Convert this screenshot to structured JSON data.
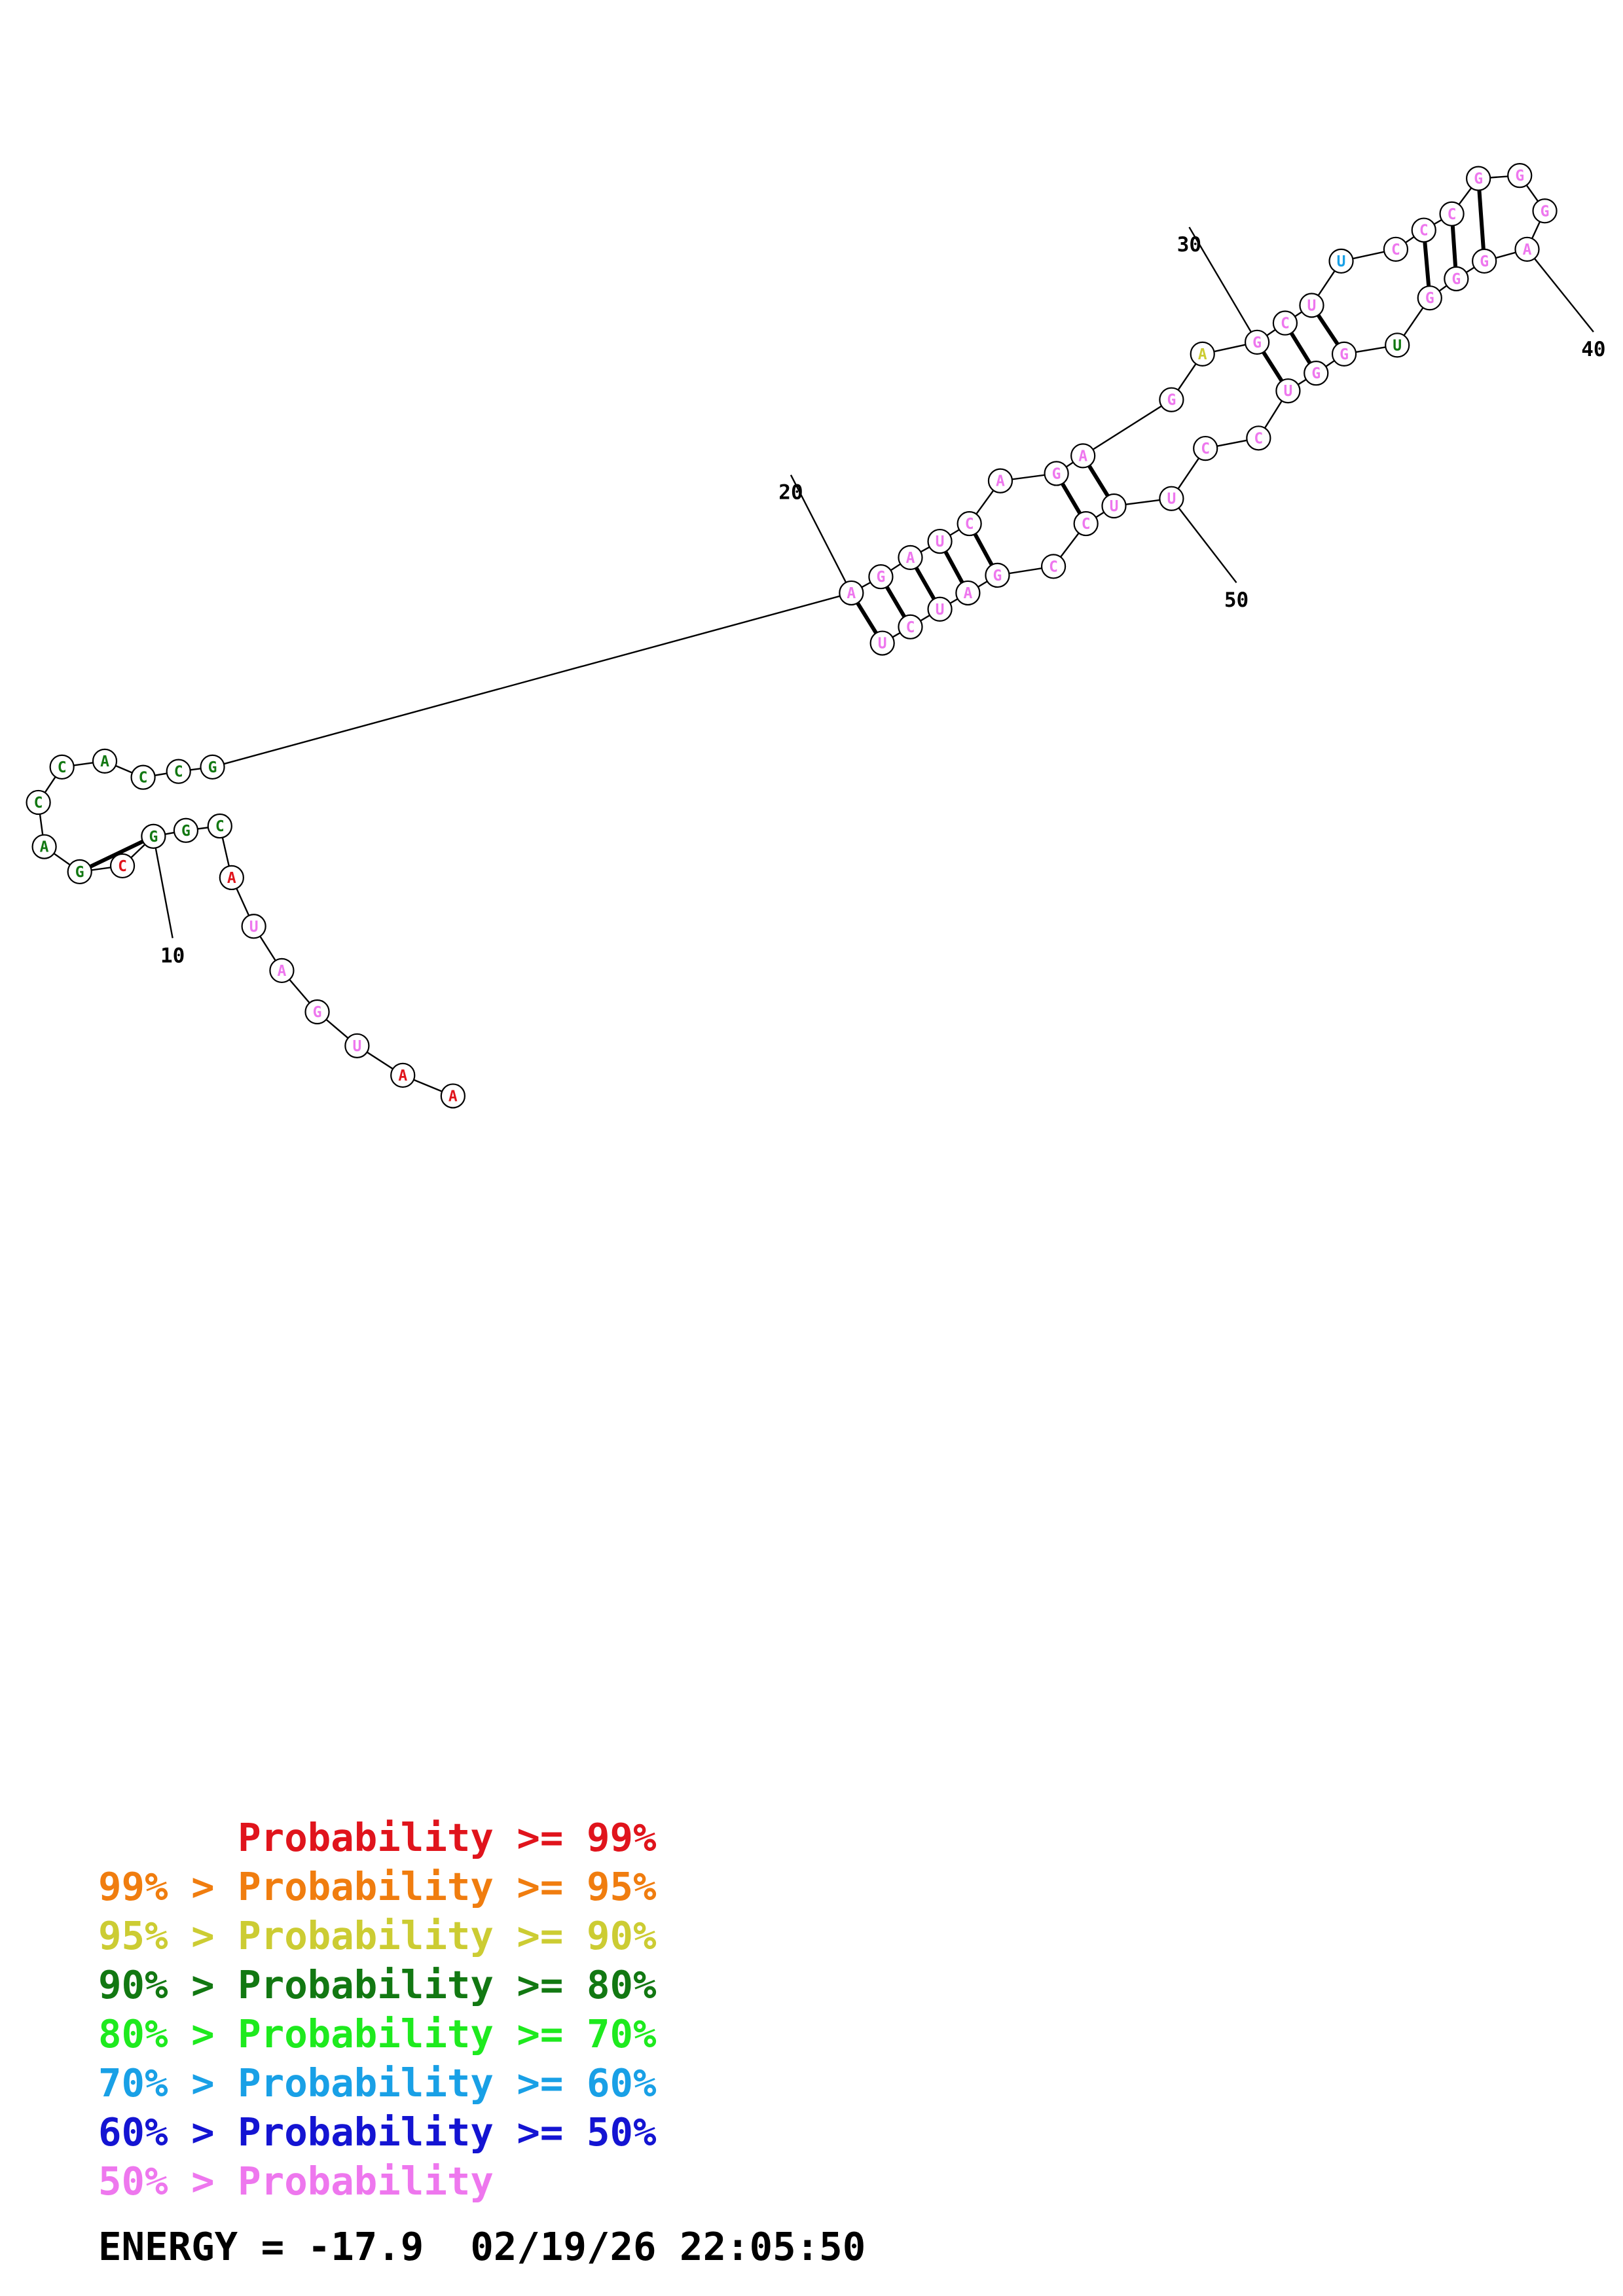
{
  "colors": {
    "p99": "#e0141c",
    "p95": "#f07d0f",
    "p90": "#cccc33",
    "p80": "#127812",
    "p70": "#1eea1e",
    "p60": "#19a0e6",
    "p50": "#1414d2",
    "plow": "#ee77ee"
  },
  "sequence": [
    {
      "n": 1,
      "base": "A",
      "prob": "p99"
    },
    {
      "n": 2,
      "base": "A",
      "prob": "p99"
    },
    {
      "n": 3,
      "base": "U",
      "prob": "plow"
    },
    {
      "n": 4,
      "base": "G",
      "prob": "plow"
    },
    {
      "n": 5,
      "base": "A",
      "prob": "plow"
    },
    {
      "n": 6,
      "base": "U",
      "prob": "plow"
    },
    {
      "n": 7,
      "base": "A",
      "prob": "p99"
    },
    {
      "n": 8,
      "base": "C",
      "prob": "p80"
    },
    {
      "n": 9,
      "base": "G",
      "prob": "p80"
    },
    {
      "n": 10,
      "base": "G",
      "prob": "p80"
    },
    {
      "n": 11,
      "base": "C",
      "prob": "p99"
    },
    {
      "n": 12,
      "base": "G",
      "prob": "p80"
    },
    {
      "n": 13,
      "base": "A",
      "prob": "p80"
    },
    {
      "n": 14,
      "base": "C",
      "prob": "p80"
    },
    {
      "n": 15,
      "base": "C",
      "prob": "p80"
    },
    {
      "n": 16,
      "base": "A",
      "prob": "p80"
    },
    {
      "n": 17,
      "base": "C",
      "prob": "p80"
    },
    {
      "n": 18,
      "base": "C",
      "prob": "p80"
    },
    {
      "n": 19,
      "base": "G",
      "prob": "p80"
    },
    {
      "n": 20,
      "base": "A",
      "prob": "plow"
    },
    {
      "n": 21,
      "base": "G",
      "prob": "plow"
    },
    {
      "n": 22,
      "base": "A",
      "prob": "plow"
    },
    {
      "n": 23,
      "base": "U",
      "prob": "plow"
    },
    {
      "n": 24,
      "base": "C",
      "prob": "plow"
    },
    {
      "n": 25,
      "base": "A",
      "prob": "plow"
    },
    {
      "n": 26,
      "base": "G",
      "prob": "plow"
    },
    {
      "n": 27,
      "base": "A",
      "prob": "plow"
    },
    {
      "n": 28,
      "base": "G",
      "prob": "plow"
    },
    {
      "n": 29,
      "base": "A",
      "prob": "p90"
    },
    {
      "n": 30,
      "base": "G",
      "prob": "plow"
    },
    {
      "n": 31,
      "base": "C",
      "prob": "plow"
    },
    {
      "n": 32,
      "base": "U",
      "prob": "plow"
    },
    {
      "n": 33,
      "base": "U",
      "prob": "p60"
    },
    {
      "n": 34,
      "base": "C",
      "prob": "plow"
    },
    {
      "n": 35,
      "base": "C",
      "prob": "plow"
    },
    {
      "n": 36,
      "base": "C",
      "prob": "plow"
    },
    {
      "n": 37,
      "base": "G",
      "prob": "plow"
    },
    {
      "n": 38,
      "base": "G",
      "prob": "plow"
    },
    {
      "n": 39,
      "base": "G",
      "prob": "plow"
    },
    {
      "n": 40,
      "base": "A",
      "prob": "plow"
    },
    {
      "n": 41,
      "base": "G",
      "prob": "plow"
    },
    {
      "n": 42,
      "base": "G",
      "prob": "plow"
    },
    {
      "n": 43,
      "base": "G",
      "prob": "plow"
    },
    {
      "n": 44,
      "base": "U",
      "prob": "p80"
    },
    {
      "n": 45,
      "base": "G",
      "prob": "plow"
    },
    {
      "n": 46,
      "base": "G",
      "prob": "plow"
    },
    {
      "n": 47,
      "base": "U",
      "prob": "plow"
    },
    {
      "n": 48,
      "base": "C",
      "prob": "plow"
    },
    {
      "n": 49,
      "base": "C",
      "prob": "plow"
    },
    {
      "n": 50,
      "base": "U",
      "prob": "plow"
    },
    {
      "n": 51,
      "base": "U",
      "prob": "plow"
    },
    {
      "n": 52,
      "base": "C",
      "prob": "plow"
    },
    {
      "n": 53,
      "base": "C",
      "prob": "plow"
    },
    {
      "n": 54,
      "base": "G",
      "prob": "plow"
    },
    {
      "n": 55,
      "base": "A",
      "prob": "plow"
    },
    {
      "n": 56,
      "base": "U",
      "prob": "plow"
    },
    {
      "n": 57,
      "base": "C",
      "prob": "plow"
    },
    {
      "n": 58,
      "base": "U",
      "prob": "plow"
    },
    {
      "n": 59,
      "base": "G",
      "prob": "p80"
    },
    {
      "n": 60,
      "base": "C",
      "prob": "p80"
    },
    {
      "n": 61,
      "base": "A",
      "prob": "p99"
    },
    {
      "n": 62,
      "base": "U",
      "prob": "plow"
    },
    {
      "n": 63,
      "base": "A",
      "prob": "plow"
    },
    {
      "n": 64,
      "base": "G",
      "prob": "plow"
    },
    {
      "n": 65,
      "base": "U",
      "prob": "plow"
    },
    {
      "n": 66,
      "base": "A",
      "prob": "p99"
    },
    {
      "n": 67,
      "base": "A",
      "prob": "p99"
    }
  ],
  "pairs": [
    [
      8,
      60
    ],
    [
      9,
      59
    ],
    [
      10,
      12
    ],
    [
      20,
      58
    ],
    [
      21,
      57
    ],
    [
      22,
      56
    ],
    [
      23,
      55
    ],
    [
      24,
      54
    ],
    [
      26,
      52
    ],
    [
      27,
      51
    ],
    [
      30,
      47
    ],
    [
      31,
      46
    ],
    [
      32,
      45
    ],
    [
      35,
      43
    ],
    [
      36,
      42
    ],
    [
      37,
      41
    ]
  ],
  "ticks": [
    {
      "label": "10",
      "base": 10
    },
    {
      "label": "20",
      "base": 20
    },
    {
      "label": "30",
      "base": 30
    },
    {
      "label": "40",
      "base": 40
    },
    {
      "label": "50",
      "base": 50
    }
  ],
  "legend": [
    {
      "prefix": "",
      "gt": "",
      "text": "Probability",
      "ge": ">=",
      "value": "99%",
      "color": "p99"
    },
    {
      "prefix": "99%",
      "gt": ">",
      "text": "Probability",
      "ge": ">=",
      "value": "95%",
      "color": "p95"
    },
    {
      "prefix": "95%",
      "gt": ">",
      "text": "Probability",
      "ge": ">=",
      "value": "90%",
      "color": "p90"
    },
    {
      "prefix": "90%",
      "gt": ">",
      "text": "Probability",
      "ge": ">=",
      "value": "80%",
      "color": "p80"
    },
    {
      "prefix": "80%",
      "gt": ">",
      "text": "Probability",
      "ge": ">=",
      "value": "70%",
      "color": "p70"
    },
    {
      "prefix": "70%",
      "gt": ">",
      "text": "Probability",
      "ge": ">=",
      "value": "60%",
      "color": "p60"
    },
    {
      "prefix": "60%",
      "gt": ">",
      "text": "Probability",
      "ge": ">=",
      "value": "50%",
      "color": "p50"
    },
    {
      "prefix": "50%",
      "gt": ">",
      "text": "Probability",
      "ge": "",
      "value": "",
      "color": "plow"
    }
  ],
  "footer": {
    "energy_label": "ENERGY = ",
    "energy_value": "-17.9",
    "timestamp": "02/19/26 22:05:50"
  }
}
